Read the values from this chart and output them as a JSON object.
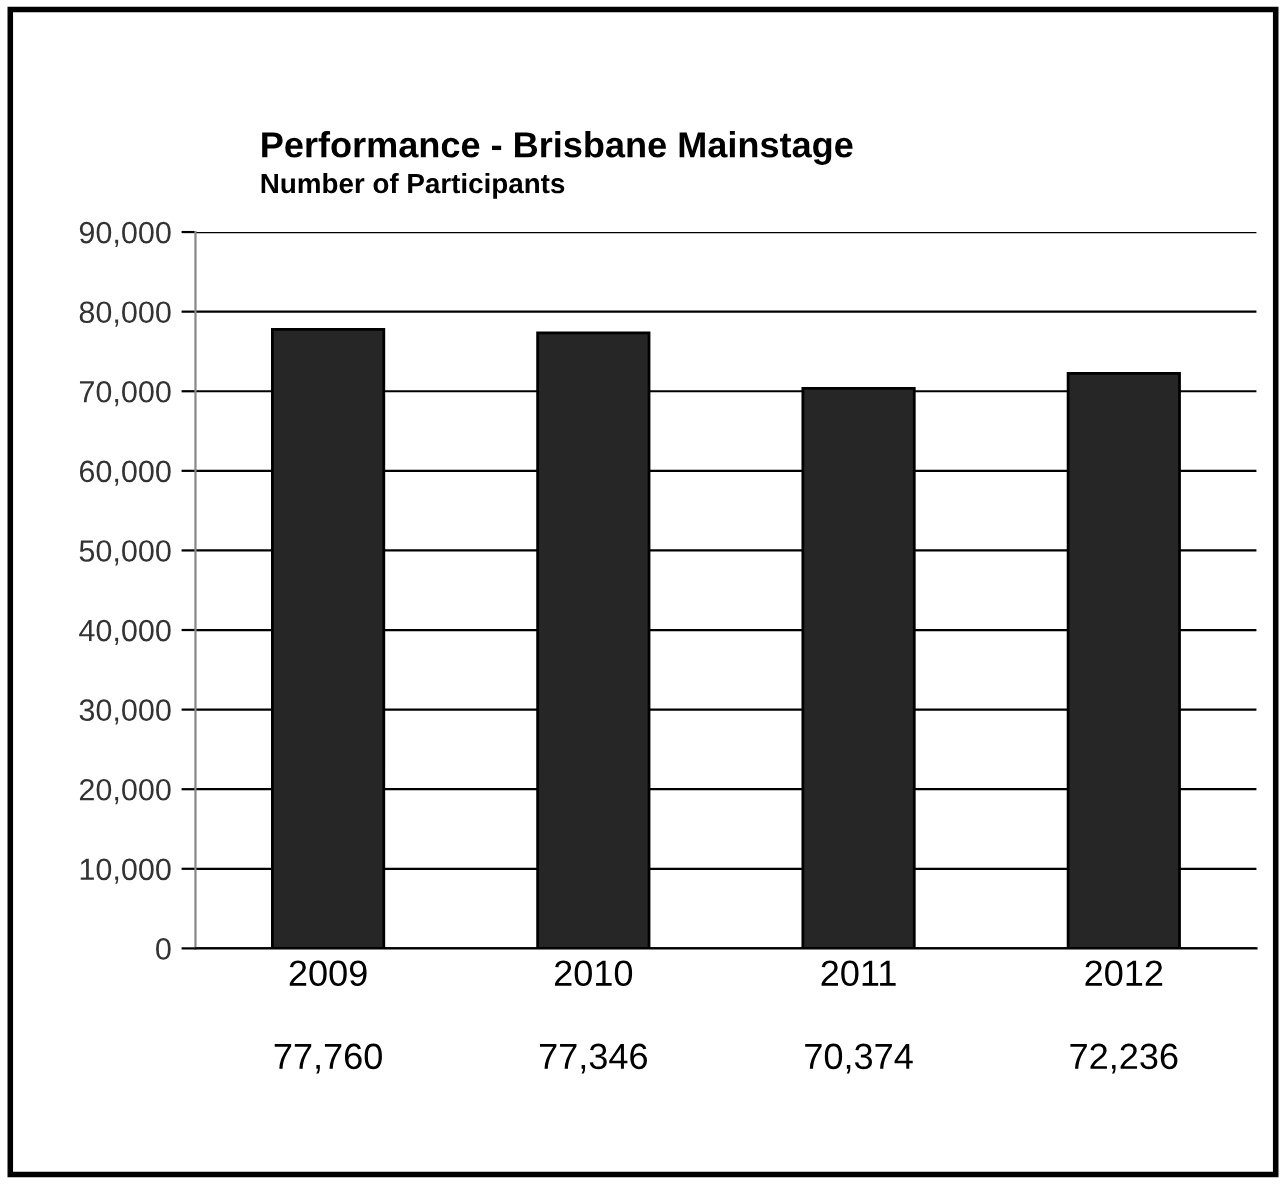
{
  "chart_data": {
    "type": "bar",
    "title": "Performance - Brisbane Mainstage",
    "subtitle": "Number of Participants",
    "categories": [
      "2009",
      "2010",
      "2011",
      "2012"
    ],
    "values": [
      77760,
      77346,
      70374,
      72236
    ],
    "color": "#262626",
    "ylim": [
      0,
      90000
    ],
    "yticks": [
      {
        "value": 0,
        "label": "0"
      },
      {
        "value": 10000,
        "label": "10,000"
      },
      {
        "value": 20000,
        "label": "20,000"
      },
      {
        "value": 30000,
        "label": "30,000"
      },
      {
        "value": 40000,
        "label": "40,000"
      },
      {
        "value": 50000,
        "label": "50,000"
      },
      {
        "value": 60000,
        "label": "60,000"
      },
      {
        "value": 70000,
        "label": "70,000"
      },
      {
        "value": 80000,
        "label": "80,000"
      },
      {
        "value": 90000,
        "label": "90,000"
      }
    ],
    "grid": "y",
    "value_labels": [
      "77,760",
      "77,346",
      "70,374",
      "72,236"
    ]
  }
}
